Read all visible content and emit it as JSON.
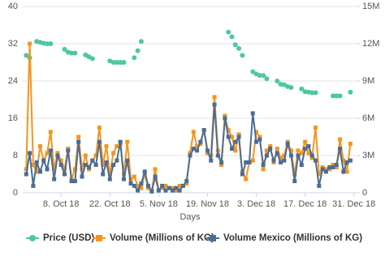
{
  "chart_data": {
    "type": "line",
    "x_label": "Days",
    "x": [
      "2018-09-28",
      "2018-09-29",
      "2018-09-30",
      "2018-10-01",
      "2018-10-02",
      "2018-10-03",
      "2018-10-04",
      "2018-10-05",
      "2018-10-06",
      "2018-10-07",
      "2018-10-08",
      "2018-10-09",
      "2018-10-10",
      "2018-10-11",
      "2018-10-12",
      "2018-10-13",
      "2018-10-14",
      "2018-10-15",
      "2018-10-16",
      "2018-10-17",
      "2018-10-18",
      "2018-10-19",
      "2018-10-20",
      "2018-10-21",
      "2018-10-22",
      "2018-10-23",
      "2018-10-24",
      "2018-10-25",
      "2018-10-26",
      "2018-10-27",
      "2018-10-28",
      "2018-10-29",
      "2018-10-30",
      "2018-10-31",
      "2018-11-01",
      "2018-11-02",
      "2018-11-03",
      "2018-11-04",
      "2018-11-05",
      "2018-11-06",
      "2018-11-07",
      "2018-11-08",
      "2018-11-09",
      "2018-11-10",
      "2018-11-11",
      "2018-11-12",
      "2018-11-13",
      "2018-11-14",
      "2018-11-15",
      "2018-11-16",
      "2018-11-17",
      "2018-11-18",
      "2018-11-19",
      "2018-11-20",
      "2018-11-21",
      "2018-11-22",
      "2018-11-23",
      "2018-11-24",
      "2018-11-25",
      "2018-11-26",
      "2018-11-27",
      "2018-11-28",
      "2018-11-29",
      "2018-11-30",
      "2018-12-01",
      "2018-12-02",
      "2018-12-03",
      "2018-12-04",
      "2018-12-05",
      "2018-12-06",
      "2018-12-07",
      "2018-12-08",
      "2018-12-09",
      "2018-12-10",
      "2018-12-11",
      "2018-12-12",
      "2018-12-13",
      "2018-12-14",
      "2018-12-15",
      "2018-12-16",
      "2018-12-17",
      "2018-12-18",
      "2018-12-19",
      "2018-12-20",
      "2018-12-21",
      "2018-12-22",
      "2018-12-23",
      "2018-12-24",
      "2018-12-25",
      "2018-12-26",
      "2018-12-27",
      "2018-12-28",
      "2018-12-29",
      "2018-12-30"
    ],
    "xlim": [
      "2018-09-27",
      "2019-01-01"
    ],
    "xticks": [
      {
        "value": "2018-10-08",
        "label": "8. Oct 18"
      },
      {
        "value": "2018-10-22",
        "label": "22. Oct 18"
      },
      {
        "value": "2018-11-05",
        "label": "5. Nov 18"
      },
      {
        "value": "2018-11-19",
        "label": "19. Nov 18"
      },
      {
        "value": "2018-12-03",
        "label": "3. Dec 18"
      },
      {
        "value": "2018-12-17",
        "label": "17. Dec 18"
      },
      {
        "value": "2018-12-31",
        "label": "31. Dec 18"
      }
    ],
    "ylim": [
      0,
      40
    ],
    "yticks": [
      0,
      8,
      16,
      24,
      32,
      40
    ],
    "y2lim": [
      0,
      15000000
    ],
    "y2ticks": [
      0,
      {
        "value": 3000000,
        "label": "3M"
      },
      {
        "value": 6000000,
        "label": "6M"
      },
      {
        "value": 9000000,
        "label": "9M"
      },
      {
        "value": 12000000,
        "label": "12M"
      },
      {
        "value": 15000000,
        "label": "15M"
      }
    ],
    "grid": true,
    "legend": "bottom",
    "series": [
      {
        "name": "Price (USD)",
        "color": "#4cc7a4",
        "style": "markers",
        "values": [
          29.5,
          29,
          null,
          32.5,
          32.3,
          32.1,
          32,
          32,
          null,
          null,
          null,
          30.8,
          30.2,
          30,
          30,
          null,
          null,
          29.6,
          29.2,
          28.8,
          null,
          null,
          null,
          null,
          28.3,
          28,
          28,
          28,
          28,
          null,
          null,
          29,
          30.5,
          32.5,
          null,
          null,
          null,
          null,
          null,
          null,
          null,
          null,
          null,
          null,
          null,
          null,
          null,
          null,
          null,
          null,
          null,
          null,
          null,
          null,
          null,
          null,
          null,
          null,
          34.5,
          33.5,
          31.8,
          31,
          29.5,
          null,
          null,
          26,
          25.5,
          25.2,
          25.2,
          24.5,
          null,
          null,
          24,
          23.3,
          23.2,
          22.8,
          22.6,
          null,
          null,
          22.3,
          21.7,
          21.6,
          21.5,
          21.5,
          null,
          null,
          null,
          null,
          20.8,
          20.8,
          20.8,
          null,
          null,
          21.6
        ]
      },
      {
        "name": "Volume (Millions of KG)",
        "color": "#f7941d",
        "style": "line",
        "axis": "y2",
        "values": [
          1900000,
          12000000,
          2250000,
          1700000,
          3750000,
          2600000,
          3200000,
          4900000,
          1900000,
          3200000,
          2600000,
          1900000,
          3550000,
          1100000,
          1900000,
          4500000,
          1900000,
          3000000,
          1900000,
          2600000,
          3000000,
          5250000,
          2250000,
          3750000,
          1500000,
          3200000,
          3750000,
          3950000,
          1500000,
          4100000,
          1100000,
          1300000,
          560000,
          380000,
          1500000,
          380000,
          190000,
          1900000,
          190000,
          380000,
          560000,
          380000,
          380000,
          190000,
          560000,
          560000,
          750000,
          3200000,
          4900000,
          3750000,
          3950000,
          5050000,
          3200000,
          3000000,
          7700000,
          3400000,
          2250000,
          6200000,
          5050000,
          4500000,
          3400000,
          4700000,
          1700000,
          1100000,
          2450000,
          2600000,
          4900000,
          4500000,
          1900000,
          3400000,
          3750000,
          2450000,
          3550000,
          2800000,
          3000000,
          4100000,
          3400000,
          1500000,
          3400000,
          3200000,
          4100000,
          3200000,
          2800000,
          5250000,
          1500000,
          2050000,
          1900000,
          1900000,
          2250000,
          2050000,
          4300000,
          2600000,
          1700000,
          3950000
        ]
      },
      {
        "name": "Volume Mexico (Millions of KG)",
        "color": "#4a6d95",
        "style": "line",
        "axis": "y2",
        "values": [
          1500000,
          3200000,
          560000,
          2450000,
          1700000,
          2600000,
          1900000,
          3400000,
          1100000,
          3000000,
          2250000,
          1500000,
          3400000,
          940000,
          940000,
          4100000,
          1300000,
          2250000,
          2050000,
          2600000,
          2250000,
          4100000,
          1500000,
          2450000,
          1100000,
          2250000,
          2600000,
          4100000,
          1100000,
          2600000,
          750000,
          560000,
          190000,
          750000,
          1700000,
          560000,
          110000,
          1300000,
          190000,
          560000,
          190000,
          380000,
          190000,
          380000,
          190000,
          560000,
          940000,
          3000000,
          3550000,
          3400000,
          4100000,
          5050000,
          3400000,
          2600000,
          7100000,
          3000000,
          2450000,
          6000000,
          4500000,
          3550000,
          4100000,
          4500000,
          1500000,
          2450000,
          2450000,
          6400000,
          4100000,
          4300000,
          2250000,
          3000000,
          3550000,
          2600000,
          3200000,
          2450000,
          2600000,
          3950000,
          3000000,
          940000,
          3000000,
          2250000,
          3550000,
          3750000,
          3000000,
          2600000,
          560000,
          1900000,
          1700000,
          2050000,
          2050000,
          2250000,
          3550000,
          1700000,
          2450000,
          2600000
        ]
      }
    ]
  }
}
